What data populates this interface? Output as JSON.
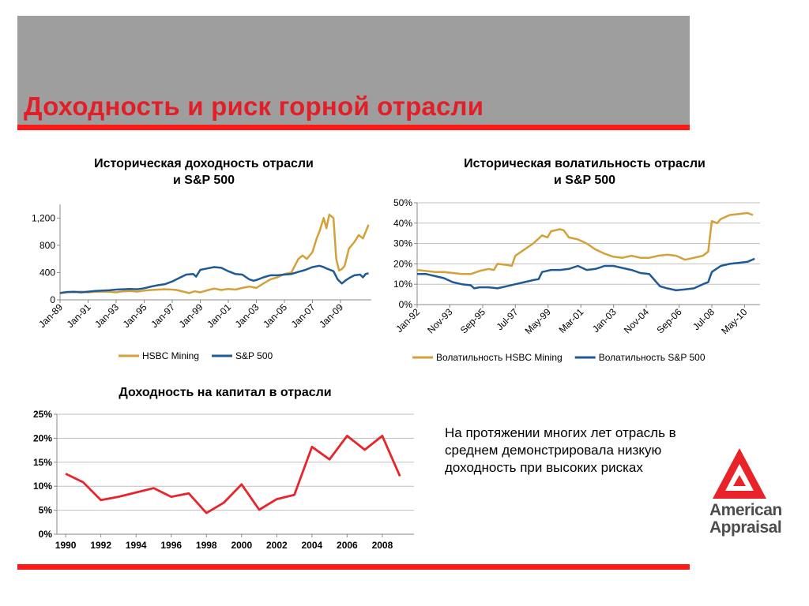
{
  "page": {
    "title": "Доходность и риск горной отрасли",
    "note": "На протяжении многих лет отрасль  в среднем демонстрировала низкую доходность при высоких рисках",
    "logo": {
      "line1": "American",
      "line2": "Appraisal"
    },
    "colors": {
      "title": "#e21f26",
      "bars": "#ff1a1a",
      "header": "#9e9e9e",
      "gold": "#d4a03a",
      "blue": "#1f5a96",
      "red": "#e8242a"
    }
  },
  "chart_data": [
    {
      "id": "returns",
      "type": "line",
      "title_line1": "Историческая доходность отрасли",
      "title_line2": "и S&P 500",
      "ylim": [
        0,
        1400
      ],
      "yticks": [
        0,
        400,
        800,
        1200
      ],
      "ytick_labels": [
        "0",
        "400",
        "800",
        "1,200"
      ],
      "xlim": [
        1989,
        2011.2
      ],
      "xticks": [
        1989,
        1991,
        1993,
        1995,
        1997,
        1999,
        2001,
        2003,
        2005,
        2007,
        2009
      ],
      "xtick_labels": [
        "Jan-89",
        "Jan-91",
        "Jan-93",
        "Jan-95",
        "Jan-97",
        "Jan-99",
        "Jan-01",
        "Jan-03",
        "Jan-05",
        "Jan-07",
        "Jan-09"
      ],
      "legend_position": "bottom",
      "series": [
        {
          "name": "HSBC Mining",
          "color": "#d4a03a",
          "points": [
            [
              1989,
              100
            ],
            [
              1989.5,
              115
            ],
            [
              1990,
              112
            ],
            [
              1990.5,
              120
            ],
            [
              1991,
              110
            ],
            [
              1991.5,
              118
            ],
            [
              1992,
              120
            ],
            [
              1992.5,
              118
            ],
            [
              1993,
              110
            ],
            [
              1993.5,
              125
            ],
            [
              1994,
              130
            ],
            [
              1994.5,
              120
            ],
            [
              1995,
              135
            ],
            [
              1995.5,
              145
            ],
            [
              1996,
              150
            ],
            [
              1996.5,
              155
            ],
            [
              1997,
              150
            ],
            [
              1997.3,
              145
            ],
            [
              1997.8,
              120
            ],
            [
              1998.2,
              100
            ],
            [
              1998.6,
              125
            ],
            [
              1999,
              110
            ],
            [
              1999.5,
              140
            ],
            [
              2000,
              165
            ],
            [
              2000.5,
              145
            ],
            [
              2001,
              160
            ],
            [
              2001.5,
              150
            ],
            [
              2002,
              175
            ],
            [
              2002.5,
              195
            ],
            [
              2003,
              175
            ],
            [
              2003.5,
              240
            ],
            [
              2004,
              300
            ],
            [
              2004.5,
              330
            ],
            [
              2005,
              380
            ],
            [
              2005.5,
              400
            ],
            [
              2006,
              600
            ],
            [
              2006.3,
              650
            ],
            [
              2006.6,
              600
            ],
            [
              2007,
              700
            ],
            [
              2007.3,
              900
            ],
            [
              2007.5,
              1000
            ],
            [
              2007.8,
              1200
            ],
            [
              2008,
              1050
            ],
            [
              2008.2,
              1250
            ],
            [
              2008.5,
              1200
            ],
            [
              2008.7,
              600
            ],
            [
              2008.9,
              430
            ],
            [
              2009.1,
              450
            ],
            [
              2009.3,
              500
            ],
            [
              2009.6,
              750
            ],
            [
              2010,
              850
            ],
            [
              2010.3,
              950
            ],
            [
              2010.6,
              900
            ],
            [
              2010.8,
              1000
            ],
            [
              2011,
              1100
            ]
          ]
        },
        {
          "name": "S&P 500",
          "color": "#1f5a96",
          "points": [
            [
              1989,
              100
            ],
            [
              1989.5,
              115
            ],
            [
              1990,
              118
            ],
            [
              1990.5,
              110
            ],
            [
              1991,
              120
            ],
            [
              1991.5,
              130
            ],
            [
              1992,
              135
            ],
            [
              1992.5,
              140
            ],
            [
              1993,
              150
            ],
            [
              1993.5,
              155
            ],
            [
              1994,
              160
            ],
            [
              1994.5,
              155
            ],
            [
              1995,
              170
            ],
            [
              1995.5,
              195
            ],
            [
              1996,
              215
            ],
            [
              1996.5,
              230
            ],
            [
              1997,
              270
            ],
            [
              1997.5,
              320
            ],
            [
              1998,
              370
            ],
            [
              1998.5,
              380
            ],
            [
              1998.7,
              340
            ],
            [
              1999,
              440
            ],
            [
              1999.5,
              460
            ],
            [
              2000,
              480
            ],
            [
              2000.5,
              470
            ],
            [
              2001,
              420
            ],
            [
              2001.5,
              380
            ],
            [
              2002,
              370
            ],
            [
              2002.5,
              300
            ],
            [
              2002.8,
              280
            ],
            [
              2003,
              290
            ],
            [
              2003.5,
              330
            ],
            [
              2004,
              360
            ],
            [
              2004.5,
              360
            ],
            [
              2005,
              370
            ],
            [
              2005.5,
              380
            ],
            [
              2006,
              410
            ],
            [
              2006.5,
              440
            ],
            [
              2007,
              480
            ],
            [
              2007.5,
              500
            ],
            [
              2007.8,
              480
            ],
            [
              2008,
              460
            ],
            [
              2008.5,
              420
            ],
            [
              2008.8,
              300
            ],
            [
              2009.1,
              240
            ],
            [
              2009.4,
              290
            ],
            [
              2009.7,
              330
            ],
            [
              2010,
              360
            ],
            [
              2010.4,
              370
            ],
            [
              2010.6,
              330
            ],
            [
              2010.8,
              380
            ],
            [
              2011,
              390
            ]
          ]
        }
      ]
    },
    {
      "id": "volatility",
      "type": "line",
      "title_line1": "Историческая  волатильность отрасли",
      "title_line2": "и S&P 500",
      "ylim": [
        0,
        0.5
      ],
      "yticks": [
        0,
        0.1,
        0.2,
        0.3,
        0.4,
        0.5
      ],
      "ytick_labels": [
        "0%",
        "10%",
        "20%",
        "30%",
        "40%",
        "50%"
      ],
      "xlim": [
        1992,
        2011.2
      ],
      "xticks": [
        1992,
        1993.83,
        1995.67,
        1997.5,
        1999.33,
        2001.17,
        2003,
        2004.83,
        2006.67,
        2008.5,
        2010.33
      ],
      "xtick_labels": [
        "Jan-92",
        "Nov-93",
        "Sep-95",
        "Jul-97",
        "May-99",
        "Mar-01",
        "Jan-03",
        "Nov-04",
        "Sep-06",
        "Jul-08",
        "May-10"
      ],
      "legend_position": "bottom",
      "series": [
        {
          "name": "Волатильность HSBC Mining",
          "color": "#d4a03a",
          "points": [
            [
              1992,
              0.17
            ],
            [
              1992.5,
              0.165
            ],
            [
              1993,
              0.16
            ],
            [
              1993.5,
              0.16
            ],
            [
              1994,
              0.155
            ],
            [
              1994.5,
              0.15
            ],
            [
              1995,
              0.15
            ],
            [
              1995.5,
              0.165
            ],
            [
              1996,
              0.175
            ],
            [
              1996.3,
              0.17
            ],
            [
              1996.5,
              0.2
            ],
            [
              1997,
              0.195
            ],
            [
              1997.3,
              0.19
            ],
            [
              1997.5,
              0.24
            ],
            [
              1998,
              0.27
            ],
            [
              1998.5,
              0.3
            ],
            [
              1999,
              0.34
            ],
            [
              1999.3,
              0.33
            ],
            [
              1999.5,
              0.36
            ],
            [
              2000,
              0.37
            ],
            [
              2000.2,
              0.365
            ],
            [
              2000.5,
              0.33
            ],
            [
              2001,
              0.32
            ],
            [
              2001.5,
              0.3
            ],
            [
              2002,
              0.27
            ],
            [
              2002.5,
              0.25
            ],
            [
              2003,
              0.235
            ],
            [
              2003.5,
              0.23
            ],
            [
              2004,
              0.24
            ],
            [
              2004.5,
              0.23
            ],
            [
              2005,
              0.23
            ],
            [
              2005.5,
              0.24
            ],
            [
              2006,
              0.245
            ],
            [
              2006.5,
              0.24
            ],
            [
              2007,
              0.22
            ],
            [
              2007.5,
              0.23
            ],
            [
              2008,
              0.24
            ],
            [
              2008.3,
              0.26
            ],
            [
              2008.5,
              0.41
            ],
            [
              2008.8,
              0.4
            ],
            [
              2009,
              0.42
            ],
            [
              2009.5,
              0.44
            ],
            [
              2010,
              0.445
            ],
            [
              2010.5,
              0.45
            ],
            [
              2010.8,
              0.44
            ]
          ]
        },
        {
          "name": "Волатильность S&P 500",
          "color": "#1f5a96",
          "points": [
            [
              1992,
              0.15
            ],
            [
              1992.5,
              0.15
            ],
            [
              1993,
              0.14
            ],
            [
              1993.5,
              0.13
            ],
            [
              1994,
              0.11
            ],
            [
              1994.5,
              0.1
            ],
            [
              1995,
              0.095
            ],
            [
              1995.2,
              0.08
            ],
            [
              1995.5,
              0.085
            ],
            [
              1996,
              0.085
            ],
            [
              1996.5,
              0.08
            ],
            [
              1997,
              0.09
            ],
            [
              1997.5,
              0.1
            ],
            [
              1998,
              0.11
            ],
            [
              1998.5,
              0.12
            ],
            [
              1998.8,
              0.125
            ],
            [
              1999,
              0.16
            ],
            [
              1999.5,
              0.17
            ],
            [
              2000,
              0.17
            ],
            [
              2000.5,
              0.175
            ],
            [
              2001,
              0.19
            ],
            [
              2001.5,
              0.17
            ],
            [
              2002,
              0.175
            ],
            [
              2002.5,
              0.19
            ],
            [
              2003,
              0.19
            ],
            [
              2003.5,
              0.18
            ],
            [
              2004,
              0.17
            ],
            [
              2004.5,
              0.155
            ],
            [
              2005,
              0.15
            ],
            [
              2005.3,
              0.12
            ],
            [
              2005.6,
              0.09
            ],
            [
              2006,
              0.08
            ],
            [
              2006.5,
              0.07
            ],
            [
              2007,
              0.075
            ],
            [
              2007.5,
              0.08
            ],
            [
              2008,
              0.1
            ],
            [
              2008.3,
              0.11
            ],
            [
              2008.5,
              0.16
            ],
            [
              2009,
              0.19
            ],
            [
              2009.5,
              0.2
            ],
            [
              2010,
              0.205
            ],
            [
              2010.5,
              0.21
            ],
            [
              2010.9,
              0.225
            ]
          ]
        }
      ]
    },
    {
      "id": "roe",
      "type": "line",
      "title_line1": "Доходность на капитал в отрасли",
      "ylim": [
        0,
        0.25
      ],
      "yticks": [
        0,
        0.05,
        0.1,
        0.15,
        0.2,
        0.25
      ],
      "ytick_labels": [
        "0%",
        "5%",
        "10%",
        "15%",
        "20%",
        "25%"
      ],
      "xlim": [
        1989.5,
        2009.8
      ],
      "xticks": [
        1990,
        1992,
        1994,
        1996,
        1998,
        2000,
        2002,
        2004,
        2006,
        2008
      ],
      "xtick_labels": [
        "1990",
        "1992",
        "1994",
        "1996",
        "1998",
        "2000",
        "2002",
        "2004",
        "2006",
        "2008"
      ],
      "series": [
        {
          "color": "#e8242a",
          "points": [
            [
              1990,
              0.126
            ],
            [
              1991,
              0.108
            ],
            [
              1992,
              0.071
            ],
            [
              1993,
              0.078
            ],
            [
              1994,
              0.087
            ],
            [
              1995,
              0.096
            ],
            [
              1996,
              0.078
            ],
            [
              1997,
              0.085
            ],
            [
              1998,
              0.044
            ],
            [
              1999,
              0.066
            ],
            [
              2000,
              0.104
            ],
            [
              2001,
              0.051
            ],
            [
              2002,
              0.073
            ],
            [
              2003,
              0.082
            ],
            [
              2004,
              0.182
            ],
            [
              2005,
              0.156
            ],
            [
              2006,
              0.205
            ],
            [
              2007,
              0.176
            ],
            [
              2008,
              0.205
            ],
            [
              2009,
              0.121
            ]
          ]
        }
      ]
    }
  ]
}
